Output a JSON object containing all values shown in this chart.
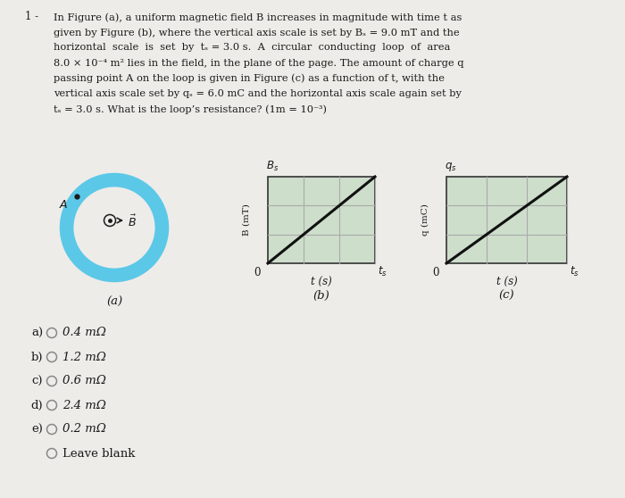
{
  "bg_color": "#eeece8",
  "text_color": "#1a1a1a",
  "circle_color": "#5bc8e8",
  "graph_bg": "#cddecb",
  "axis_color": "#333333",
  "line_color": "#111111",
  "grid_color": "#aaaaaa",
  "para_lines": [
    "In Figure (a), a uniform magnetic field B increases in magnitude with time t as",
    "given by Figure (b), where the vertical axis scale is set by Bₛ = 9.0 mT and the",
    "horizontal  scale  is  set  by  tₛ = 3.0 s.  A  circular  conducting  loop  of  area",
    "8.0 × 10⁻⁴ m² lies in the field, in the plane of the page. The amount of charge q",
    "passing point A on the loop is given in Figure (c) as a function of t, with the",
    "vertical axis scale set by qₛ = 6.0 mC and the horizontal axis scale again set by",
    "tₛ = 3.0 s. What is the loop’s resistance? (1m = 10⁻³)"
  ],
  "choices": [
    [
      "a)",
      "0.4 mΩ"
    ],
    [
      "b)",
      "1.2 mΩ"
    ],
    [
      "c)",
      "0.6 mΩ"
    ],
    [
      "d)",
      "2.4 mΩ"
    ],
    [
      "e)",
      "0.2 mΩ"
    ],
    [
      "",
      "Leave blank"
    ]
  ],
  "label_1": "1 -",
  "label_a": "(a)",
  "label_b": "(b)",
  "label_c": "(c)",
  "label_ts_b": "tₛ",
  "label_ts_c": "tₛ",
  "label_Bs": "Bₛ",
  "label_qs": "qₛ",
  "label_0_b": "0",
  "label_0_c": "0",
  "label_t_b": "t (s)",
  "label_t_c": "t (s)",
  "label_Bmt": "B (mT)",
  "label_qmc": "q (mC)"
}
